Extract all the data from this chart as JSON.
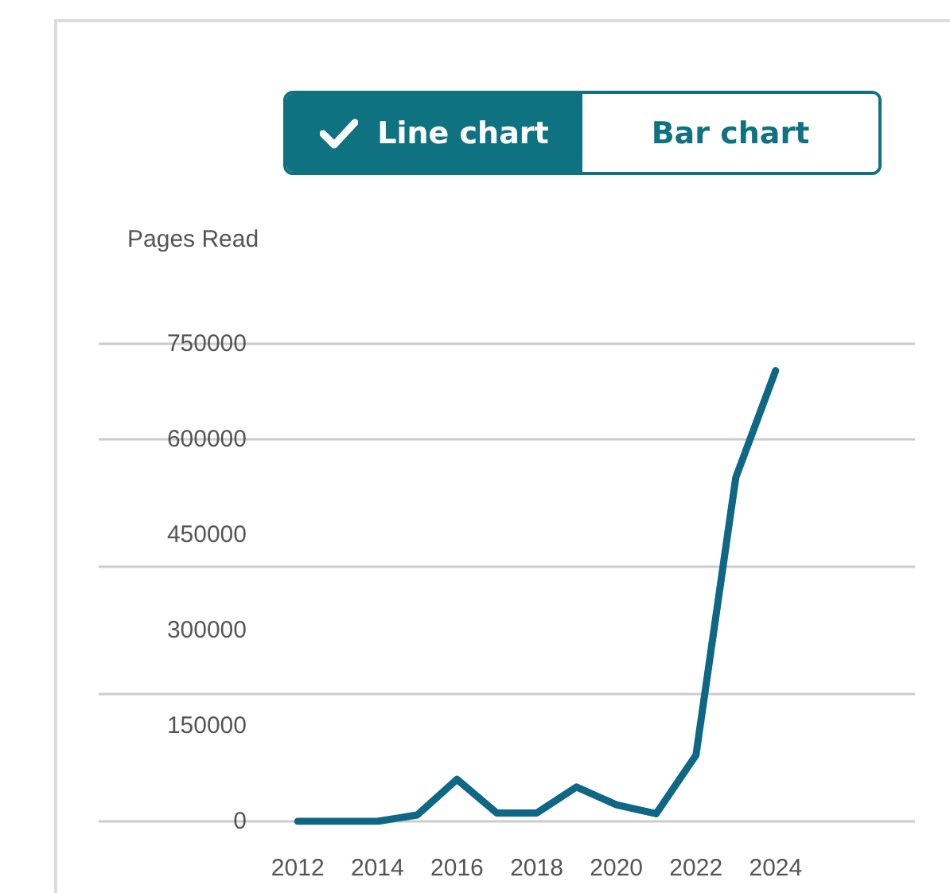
{
  "chart_data": {
    "type": "line",
    "ylabel": "Pages Read",
    "annotations": [
      "Line chart",
      "Bar chart"
    ],
    "x": [
      2012,
      2013,
      2014,
      2015,
      2016,
      2017,
      2018,
      2019,
      2020,
      2021,
      2022,
      2023,
      2024
    ],
    "series": [
      {
        "color": "#0e6785",
        "values": [
          0,
          0,
          0,
          10000,
          66000,
          13000,
          13000,
          54000,
          26000,
          12000,
          104000,
          540000,
          708000
        ]
      }
    ],
    "xlim": [
      2007,
      2027.5
    ],
    "xticks": [
      2012,
      2014,
      2016,
      2018,
      2020,
      2022,
      2024
    ],
    "ylim": [
      0,
      750000
    ],
    "yticks": [
      0,
      150000,
      300000,
      450000,
      600000,
      750000
    ],
    "grid": "y",
    "marker": "none",
    "line_style": "solid"
  }
}
